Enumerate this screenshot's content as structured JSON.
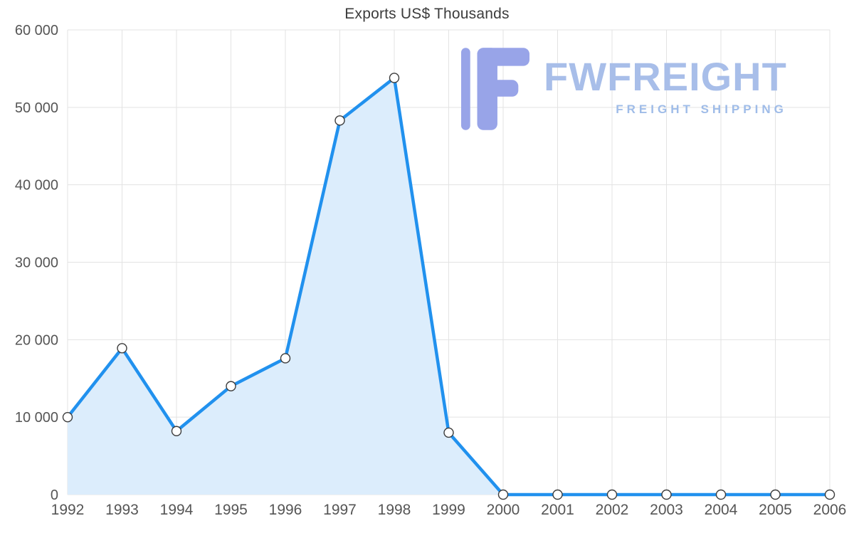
{
  "chart_data": {
    "type": "area",
    "title": "Exports US$ Thousands",
    "categories": [
      "1992",
      "1993",
      "1994",
      "1995",
      "1996",
      "1997",
      "1998",
      "1999",
      "2000",
      "2001",
      "2002",
      "2003",
      "2004",
      "2005",
      "2006"
    ],
    "values": [
      10000,
      18900,
      8200,
      14000,
      17600,
      48300,
      53800,
      8000,
      0,
      0,
      0,
      0,
      0,
      0,
      0
    ],
    "xlabel": "",
    "ylabel": "",
    "ylim": [
      0,
      60000
    ],
    "y_ticks": [
      0,
      10000,
      20000,
      30000,
      40000,
      50000,
      60000
    ],
    "y_tick_labels": [
      "0",
      "10 000",
      "20 000",
      "30 000",
      "40 000",
      "50 000",
      "60 000"
    ],
    "grid": true,
    "legend_position": "none",
    "line_color": "#2191EE",
    "area_color": "#DCEDFC",
    "grid_color": "#E3E3E3",
    "label_color": "#555555",
    "marker_fill": "#FFFFFF",
    "marker_stroke": "#3C3C3C"
  },
  "logo": {
    "title": "FWFREIGHT",
    "subtitle": "FREIGHT SHIPPING",
    "title_color": "#A8BEE9",
    "subtitle_color": "#9FBCE8",
    "icon_color": "#98A4E8"
  }
}
